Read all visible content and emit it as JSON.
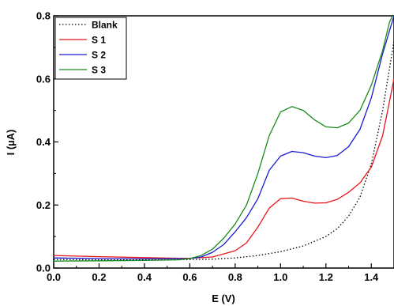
{
  "chart_data": {
    "type": "line",
    "xlabel": "E (V)",
    "ylabel": "I (µA)",
    "xlim": [
      0.0,
      1.5
    ],
    "ylim": [
      0.0,
      0.8
    ],
    "xticks": [
      "0.0",
      "0.2",
      "0.4",
      "0.6",
      "0.8",
      "1.0",
      "1.2",
      "1.4"
    ],
    "yticks": [
      "0.0",
      "0.2",
      "0.4",
      "0.6",
      "0.8"
    ],
    "grid": false,
    "legend_position": "top-left",
    "series": [
      {
        "name": "Blank",
        "color": "#000000",
        "dash": "dotted",
        "points": [
          [
            0.0,
            0.027
          ],
          [
            0.2,
            0.026
          ],
          [
            0.4,
            0.026
          ],
          [
            0.6,
            0.027
          ],
          [
            0.7,
            0.028
          ],
          [
            0.8,
            0.032
          ],
          [
            0.9,
            0.04
          ],
          [
            1.0,
            0.052
          ],
          [
            1.1,
            0.07
          ],
          [
            1.2,
            0.1
          ],
          [
            1.25,
            0.125
          ],
          [
            1.3,
            0.165
          ],
          [
            1.35,
            0.225
          ],
          [
            1.4,
            0.33
          ],
          [
            1.45,
            0.5
          ],
          [
            1.5,
            0.72
          ]
        ]
      },
      {
        "name": "S 1",
        "color": "#e8141b",
        "dash": "solid",
        "points": [
          [
            0.0,
            0.04
          ],
          [
            0.2,
            0.036
          ],
          [
            0.4,
            0.033
          ],
          [
            0.55,
            0.031
          ],
          [
            0.6,
            0.031
          ],
          [
            0.7,
            0.035
          ],
          [
            0.8,
            0.055
          ],
          [
            0.85,
            0.08
          ],
          [
            0.9,
            0.13
          ],
          [
            0.95,
            0.19
          ],
          [
            1.0,
            0.22
          ],
          [
            1.05,
            0.222
          ],
          [
            1.1,
            0.212
          ],
          [
            1.15,
            0.206
          ],
          [
            1.2,
            0.207
          ],
          [
            1.25,
            0.218
          ],
          [
            1.3,
            0.24
          ],
          [
            1.35,
            0.27
          ],
          [
            1.4,
            0.32
          ],
          [
            1.45,
            0.42
          ],
          [
            1.5,
            0.6
          ]
        ]
      },
      {
        "name": "S 2",
        "color": "#1a1ad4",
        "dash": "solid",
        "points": [
          [
            0.0,
            0.032
          ],
          [
            0.2,
            0.03
          ],
          [
            0.4,
            0.029
          ],
          [
            0.6,
            0.03
          ],
          [
            0.65,
            0.035
          ],
          [
            0.7,
            0.05
          ],
          [
            0.75,
            0.075
          ],
          [
            0.8,
            0.115
          ],
          [
            0.85,
            0.16
          ],
          [
            0.9,
            0.22
          ],
          [
            0.95,
            0.31
          ],
          [
            1.0,
            0.355
          ],
          [
            1.05,
            0.37
          ],
          [
            1.1,
            0.366
          ],
          [
            1.15,
            0.355
          ],
          [
            1.2,
            0.35
          ],
          [
            1.25,
            0.357
          ],
          [
            1.3,
            0.385
          ],
          [
            1.35,
            0.44
          ],
          [
            1.4,
            0.54
          ],
          [
            1.45,
            0.68
          ],
          [
            1.5,
            0.8
          ]
        ]
      },
      {
        "name": "S 3",
        "color": "#1a8a1a",
        "dash": "solid",
        "points": [
          [
            0.0,
            0.022
          ],
          [
            0.2,
            0.023
          ],
          [
            0.4,
            0.024
          ],
          [
            0.55,
            0.026
          ],
          [
            0.6,
            0.03
          ],
          [
            0.65,
            0.04
          ],
          [
            0.7,
            0.06
          ],
          [
            0.75,
            0.095
          ],
          [
            0.8,
            0.14
          ],
          [
            0.85,
            0.2
          ],
          [
            0.9,
            0.3
          ],
          [
            0.95,
            0.42
          ],
          [
            1.0,
            0.495
          ],
          [
            1.05,
            0.512
          ],
          [
            1.1,
            0.5
          ],
          [
            1.15,
            0.47
          ],
          [
            1.2,
            0.448
          ],
          [
            1.25,
            0.445
          ],
          [
            1.3,
            0.46
          ],
          [
            1.35,
            0.5
          ],
          [
            1.4,
            0.58
          ],
          [
            1.45,
            0.69
          ],
          [
            1.48,
            0.78
          ],
          [
            1.5,
            0.81
          ]
        ]
      }
    ]
  }
}
